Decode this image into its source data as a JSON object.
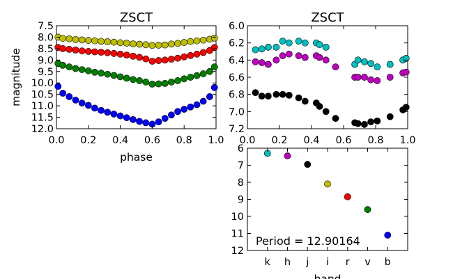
{
  "chart_data": [
    {
      "type": "scatter",
      "title": "ZSCT",
      "xlabel": "phase",
      "ylabel": "magnitude",
      "xlim": [
        0.0,
        1.0
      ],
      "ylim": [
        12.0,
        7.5
      ],
      "y_inverted": true,
      "grid": false,
      "xticks": [
        "0.0",
        "0.2",
        "0.4",
        "0.6",
        "0.8",
        "1.0"
      ],
      "yticks": [
        "7.5",
        "8.0",
        "8.5",
        "9.0",
        "9.5",
        "10.0",
        "10.5",
        "11.0",
        "11.5",
        "12.0"
      ],
      "series": [
        {
          "color": "#bfbf00",
          "x": [
            0.01,
            0.04,
            0.08,
            0.12,
            0.16,
            0.2,
            0.24,
            0.28,
            0.32,
            0.36,
            0.4,
            0.44,
            0.48,
            0.52,
            0.56,
            0.6,
            0.64,
            0.68,
            0.72,
            0.76,
            0.8,
            0.84,
            0.88,
            0.92,
            0.96,
            0.99
          ],
          "y": [
            8.0,
            8.05,
            8.07,
            8.1,
            8.12,
            8.14,
            8.16,
            8.18,
            8.2,
            8.22,
            8.24,
            8.26,
            8.29,
            8.31,
            8.33,
            8.36,
            8.35,
            8.34,
            8.3,
            8.27,
            8.23,
            8.19,
            8.16,
            8.13,
            8.09,
            8.04
          ]
        },
        {
          "color": "#ff0000",
          "x": [
            0.01,
            0.04,
            0.08,
            0.12,
            0.16,
            0.2,
            0.24,
            0.28,
            0.32,
            0.36,
            0.4,
            0.44,
            0.48,
            0.52,
            0.56,
            0.6,
            0.64,
            0.68,
            0.72,
            0.76,
            0.8,
            0.84,
            0.88,
            0.92,
            0.96,
            0.99
          ],
          "y": [
            8.45,
            8.5,
            8.53,
            8.56,
            8.6,
            8.62,
            8.64,
            8.66,
            8.68,
            8.71,
            8.74,
            8.78,
            8.83,
            8.88,
            8.95,
            9.05,
            9.02,
            9.0,
            8.96,
            8.92,
            8.86,
            8.8,
            8.74,
            8.67,
            8.58,
            8.45
          ]
        },
        {
          "color": "#008000",
          "x": [
            0.01,
            0.04,
            0.08,
            0.12,
            0.16,
            0.2,
            0.24,
            0.28,
            0.32,
            0.36,
            0.4,
            0.44,
            0.48,
            0.52,
            0.56,
            0.6,
            0.64,
            0.68,
            0.72,
            0.76,
            0.8,
            0.84,
            0.88,
            0.92,
            0.96,
            0.99
          ],
          "y": [
            9.15,
            9.23,
            9.3,
            9.37,
            9.42,
            9.47,
            9.53,
            9.57,
            9.62,
            9.67,
            9.73,
            9.79,
            9.85,
            9.9,
            9.96,
            10.05,
            10.04,
            10.02,
            9.96,
            9.9,
            9.82,
            9.75,
            9.68,
            9.6,
            9.5,
            9.3
          ]
        },
        {
          "color": "#0000ff",
          "x": [
            0.01,
            0.04,
            0.08,
            0.12,
            0.16,
            0.2,
            0.24,
            0.28,
            0.32,
            0.36,
            0.4,
            0.44,
            0.48,
            0.52,
            0.56,
            0.6,
            0.64,
            0.68,
            0.72,
            0.76,
            0.8,
            0.84,
            0.88,
            0.92,
            0.96,
            0.99
          ],
          "y": [
            10.15,
            10.45,
            10.6,
            10.75,
            10.88,
            10.98,
            11.1,
            11.2,
            11.28,
            11.36,
            11.44,
            11.52,
            11.6,
            11.68,
            11.74,
            11.8,
            11.7,
            11.55,
            11.4,
            11.25,
            11.15,
            11.05,
            10.95,
            10.8,
            10.6,
            10.2
          ]
        }
      ]
    },
    {
      "type": "scatter",
      "title": "ZSCT",
      "xlim": [
        0.0,
        1.0
      ],
      "ylim": [
        7.2,
        6.0
      ],
      "y_inverted": true,
      "grid": false,
      "xticks": [
        "0.0",
        "0.2",
        "0.4",
        "0.6",
        "0.8",
        "1.0"
      ],
      "yticks": [
        "6.0",
        "6.2",
        "6.4",
        "6.6",
        "6.8",
        "7.0",
        "7.2"
      ],
      "series": [
        {
          "color": "#00bfbf",
          "x": [
            0.05,
            0.09,
            0.13,
            0.18,
            0.22,
            0.26,
            0.32,
            0.36,
            0.43,
            0.45,
            0.49,
            0.67,
            0.69,
            0.73,
            0.77,
            0.81,
            0.89,
            0.97,
            0.99
          ],
          "y": [
            6.28,
            6.27,
            6.25,
            6.25,
            6.18,
            6.2,
            6.18,
            6.2,
            6.2,
            6.22,
            6.25,
            6.45,
            6.4,
            6.42,
            6.44,
            6.48,
            6.45,
            6.4,
            6.38
          ]
        },
        {
          "color": "#bf00bf",
          "x": [
            0.05,
            0.09,
            0.13,
            0.18,
            0.22,
            0.26,
            0.32,
            0.36,
            0.43,
            0.45,
            0.49,
            0.55,
            0.67,
            0.69,
            0.73,
            0.77,
            0.81,
            0.89,
            0.97,
            0.99
          ],
          "y": [
            6.42,
            6.43,
            6.45,
            6.4,
            6.35,
            6.33,
            6.35,
            6.37,
            6.35,
            6.37,
            6.4,
            6.48,
            6.6,
            6.6,
            6.6,
            6.63,
            6.64,
            6.6,
            6.55,
            6.54
          ]
        },
        {
          "color": "#000000",
          "x": [
            0.05,
            0.09,
            0.13,
            0.18,
            0.22,
            0.26,
            0.32,
            0.36,
            0.43,
            0.45,
            0.49,
            0.55,
            0.67,
            0.69,
            0.73,
            0.77,
            0.81,
            0.89,
            0.97,
            0.99
          ],
          "y": [
            6.78,
            6.82,
            6.82,
            6.8,
            6.8,
            6.81,
            6.84,
            6.88,
            6.9,
            6.94,
            7.0,
            7.08,
            7.13,
            7.14,
            7.15,
            7.12,
            7.11,
            7.06,
            6.98,
            6.95
          ]
        }
      ]
    },
    {
      "type": "scatter",
      "xlabel": "band",
      "ylim": [
        12,
        6
      ],
      "y_inverted": true,
      "grid": false,
      "categories": [
        "k",
        "h",
        "j",
        "i",
        "r",
        "v",
        "b"
      ],
      "yticks": [
        "6",
        "7",
        "8",
        "9",
        "10",
        "11",
        "12"
      ],
      "values": [
        6.3,
        6.45,
        6.95,
        8.1,
        8.85,
        9.6,
        11.1
      ],
      "colors": [
        "#00bfbf",
        "#bf00bf",
        "#000000",
        "#bfbf00",
        "#ff0000",
        "#008000",
        "#0000ff"
      ],
      "annotation": "Period = 12.90164"
    }
  ]
}
